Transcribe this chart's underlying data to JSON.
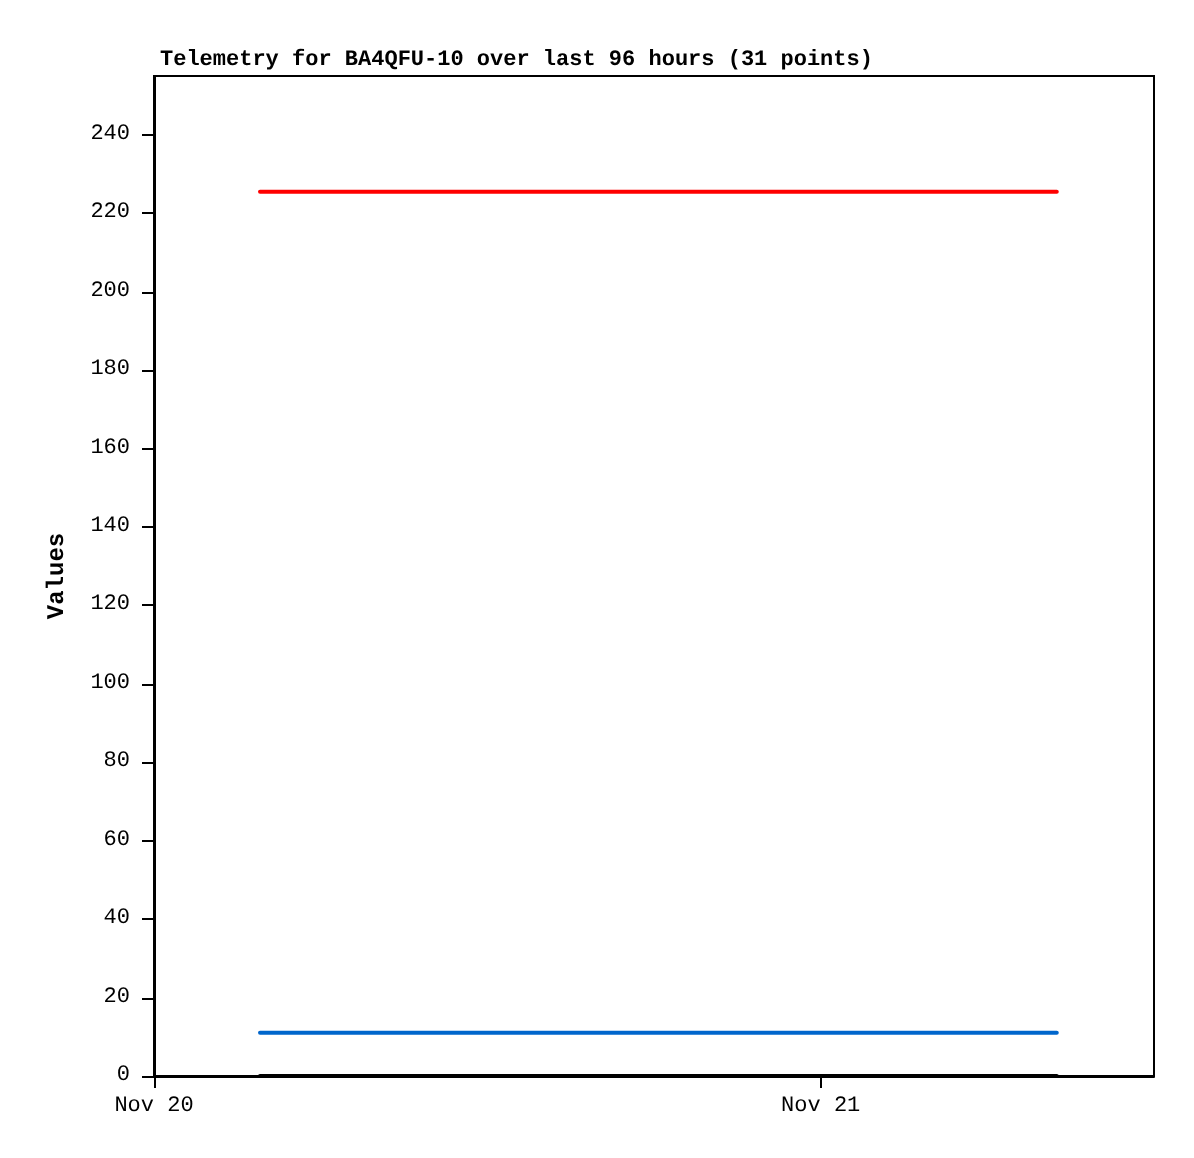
{
  "chart_data": {
    "type": "line",
    "title": "Telemetry for BA4QFU-10 over last 96 hours (31 points)",
    "ylabel": "Values",
    "x": [
      "--11-20T03:49",
      "--11-21T08:30"
    ],
    "series": [
      {
        "color": "#ff0000",
        "values": [
          225.5,
          225.5
        ]
      },
      {
        "color": "#0066cc",
        "values": [
          11,
          11
        ]
      },
      {
        "color": "#000000",
        "values": [
          0,
          0
        ]
      }
    ],
    "xlim": [
      "--11-20T00:00",
      "--11-21T12:00"
    ],
    "xticks": [
      {
        "value": "--11-20T00:00",
        "label": "Nov 20"
      },
      {
        "value": "--11-21T00:00",
        "label": "Nov 21"
      }
    ],
    "ylim": [
      0,
      255
    ],
    "yticks": [
      0,
      20,
      40,
      60,
      80,
      100,
      120,
      140,
      160,
      180,
      200,
      220,
      240
    ],
    "grid": false,
    "marker": "none",
    "line_style": "solid"
  }
}
